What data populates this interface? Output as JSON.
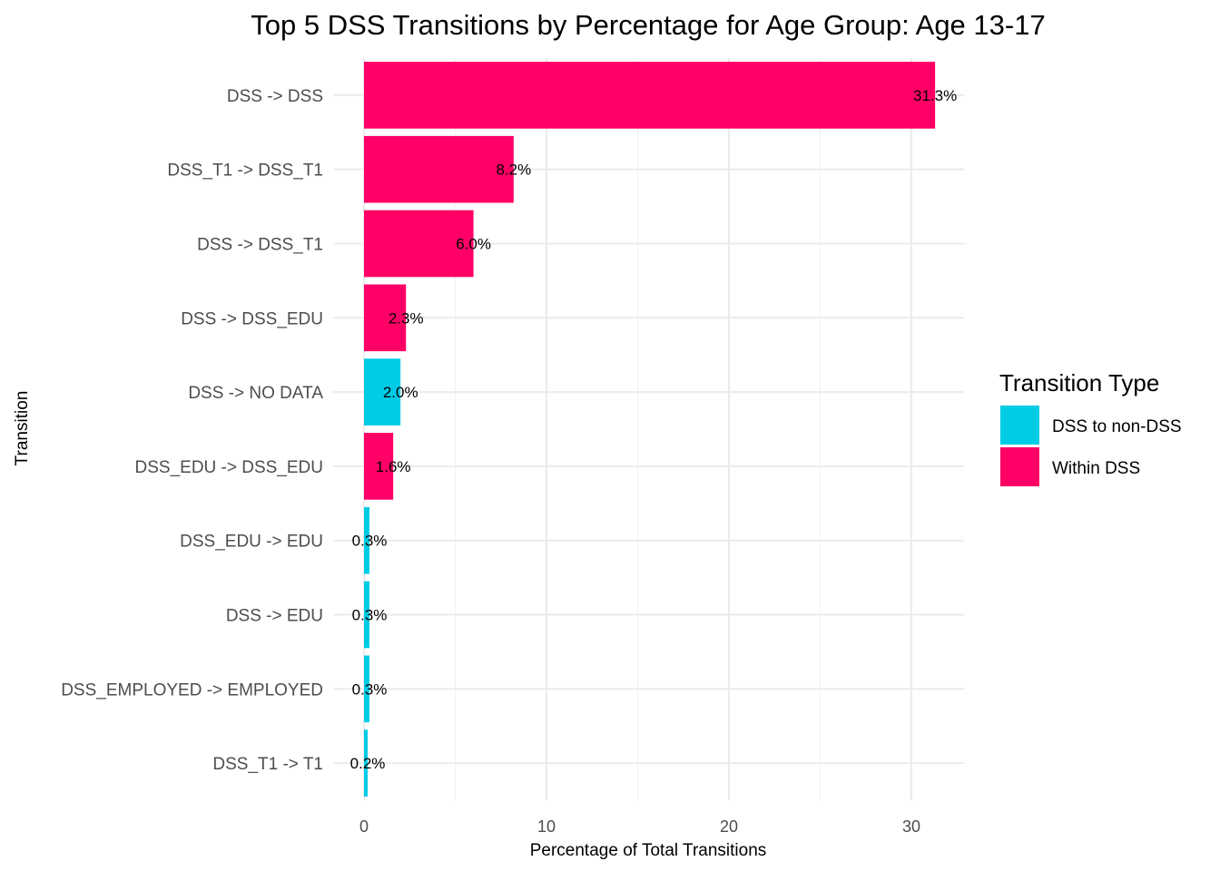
{
  "chart_data": {
    "type": "bar",
    "orientation": "horizontal",
    "title": "Top 5 DSS Transitions by Percentage for Age Group: Age 13-17",
    "xlabel": "Percentage of Total Transitions",
    "ylabel": "Transition",
    "xlim": [
      0,
      33
    ],
    "xticks": [
      0,
      10,
      20,
      30
    ],
    "grid": true,
    "legend": {
      "title": "Transition Type",
      "placement": "right",
      "entries": [
        {
          "name": "DSS to non-DSS",
          "color": "#00CCE6"
        },
        {
          "name": "Within DSS",
          "color": "#FF0066"
        }
      ]
    },
    "categories": [
      "DSS -> DSS",
      "DSS_T1 -> DSS_T1",
      "DSS -> DSS_T1",
      "DSS -> DSS_EDU",
      "DSS -> NO DATA",
      "DSS_EDU -> DSS_EDU",
      "DSS_EDU -> EDU",
      "DSS -> EDU",
      "DSS_EMPLOYED -> EMPLOYED",
      "DSS_T1 -> T1"
    ],
    "values": [
      31.3,
      8.2,
      6.0,
      2.3,
      2.0,
      1.6,
      0.3,
      0.3,
      0.3,
      0.2
    ],
    "data_labels": [
      "31.3%",
      "8.2%",
      "6.0%",
      "2.3%",
      "2.0%",
      "1.6%",
      "0.3%",
      "0.3%",
      "0.3%",
      "0.2%"
    ],
    "types": [
      "Within DSS",
      "Within DSS",
      "Within DSS",
      "Within DSS",
      "DSS to non-DSS",
      "Within DSS",
      "DSS to non-DSS",
      "DSS to non-DSS",
      "DSS to non-DSS",
      "DSS to non-DSS"
    ]
  }
}
